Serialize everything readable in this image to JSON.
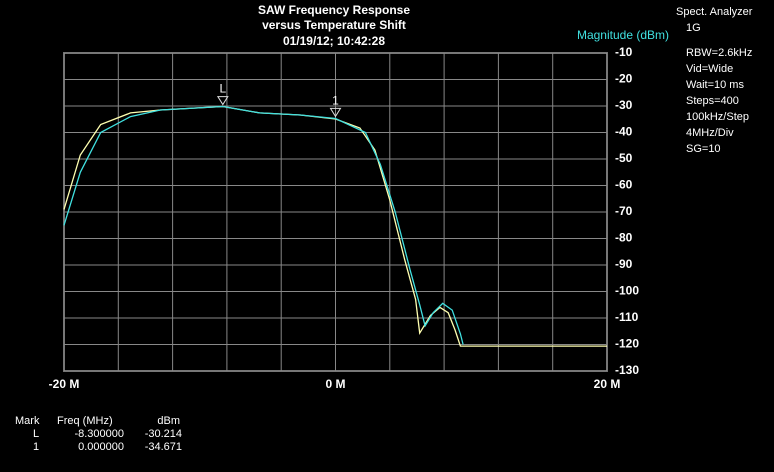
{
  "chart_data": {
    "type": "line",
    "title": [
      "SAW Frequency Response",
      "versus Temperature Shift",
      "01/19/12; 10:42:28"
    ],
    "y_label": "Magnitude (dBm)",
    "xlim": [
      -20,
      20
    ],
    "ylim": [
      -130,
      -10
    ],
    "xticks": [
      {
        "value": -20,
        "label": "-20 M"
      },
      {
        "value": 0,
        "label": "0 M"
      },
      {
        "value": 20,
        "label": "20 M"
      }
    ],
    "xgrid": [
      -20,
      -16,
      -12,
      -8,
      -4,
      0,
      4,
      8,
      12,
      16,
      20
    ],
    "yticks": [
      -10,
      -20,
      -30,
      -40,
      -50,
      -60,
      -70,
      -80,
      -90,
      -100,
      -110,
      -120,
      -130
    ],
    "grid": true,
    "series": [
      {
        "color": "#ffffb0",
        "x": [
          -20,
          -18.8,
          -17.3,
          -15.1,
          -12.9,
          -8.3,
          -5.6,
          -2.6,
          0,
          1.8,
          2.9,
          4.0,
          5.1,
          5.9,
          6.2,
          7.0,
          7.7,
          8.3,
          8.8,
          9.2,
          20
        ],
        "values": [
          -69,
          -48.5,
          -37,
          -32.6,
          -31.5,
          -30.2,
          -32.6,
          -33.4,
          -34.9,
          -38.3,
          -46.6,
          -65.5,
          -88,
          -103,
          -115.7,
          -109,
          -106,
          -108,
          -114.5,
          -120.6,
          -120.6
        ]
      },
      {
        "color": "#40e0e0",
        "x": [
          -20,
          -18.8,
          -17.3,
          -15.1,
          -12.9,
          -8.3,
          -5.6,
          -2.6,
          0,
          2.2,
          3.3,
          4.4,
          5.5,
          6.2,
          6.6,
          7.2,
          7.9,
          8.6,
          9.2,
          9.4
        ],
        "values": [
          -75,
          -55,
          -40,
          -34,
          -31.5,
          -30.2,
          -32.6,
          -33.4,
          -34.7,
          -40,
          -52,
          -70,
          -92,
          -105,
          -113,
          -108,
          -104.5,
          -107,
          -116,
          -120
        ]
      }
    ],
    "markers": [
      {
        "label": "L",
        "x": -8.3,
        "y": -30.214
      },
      {
        "label": "1",
        "x": 0,
        "y": -34.671
      }
    ],
    "settings": [
      "Spect. Analyzer",
      "1G",
      "RBW=2.6kHz",
      "Vid=Wide",
      "Wait=10 ms",
      "Steps=400",
      "100kHz/Step",
      "4MHz/Div",
      "SG=10"
    ],
    "marker_table": {
      "header": [
        "Mark",
        "Freq (MHz)",
        "dBm"
      ],
      "rows": [
        [
          "L",
          "-8.300000",
          "-30.214"
        ],
        [
          "1",
          "0.000000",
          "-34.671"
        ]
      ]
    }
  }
}
